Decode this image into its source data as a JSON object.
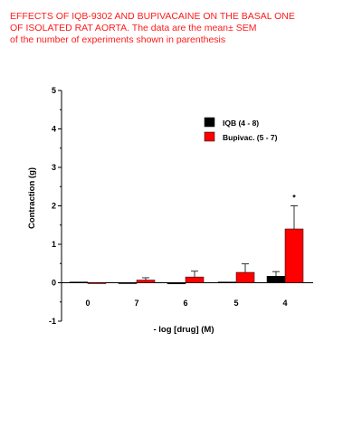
{
  "caption": {
    "lines": [
      "EFFECTS OF IQB-9302 AND BUPIVACAINE ON THE BASAL ONE",
      "OF ISOLATED RAT AORTA. The data are the mean± SEM",
      "of the number of experiments shown in parenthesis"
    ]
  },
  "chart_data": {
    "type": "bar",
    "xlabel": "- log [drug] (M)",
    "ylabel": "Contraction (g)",
    "ylim": [
      -1,
      5
    ],
    "yticks": [
      "-1",
      "0",
      "1",
      "2",
      "3",
      "4",
      "5"
    ],
    "categories": [
      "0",
      "7",
      "6",
      "5",
      "4"
    ],
    "series": [
      {
        "name": "IQB (4 - 8)",
        "color": "#000000",
        "values": [
          0.02,
          -0.02,
          -0.03,
          0.02,
          0.17
        ],
        "errors": [
          0.0,
          0.0,
          0.0,
          0.0,
          0.12
        ]
      },
      {
        "name": "Bupivac. (5 - 7)",
        "color": "#ff0000",
        "values": [
          0.0,
          0.07,
          0.15,
          0.27,
          1.4
        ],
        "errors": [
          0.0,
          0.06,
          0.15,
          0.22,
          0.6
        ]
      }
    ],
    "annotations": [
      {
        "text": "*",
        "category": "4",
        "series": "Bupivac. (5 - 7)"
      }
    ],
    "legend_position": "upper-right",
    "grid": false
  }
}
